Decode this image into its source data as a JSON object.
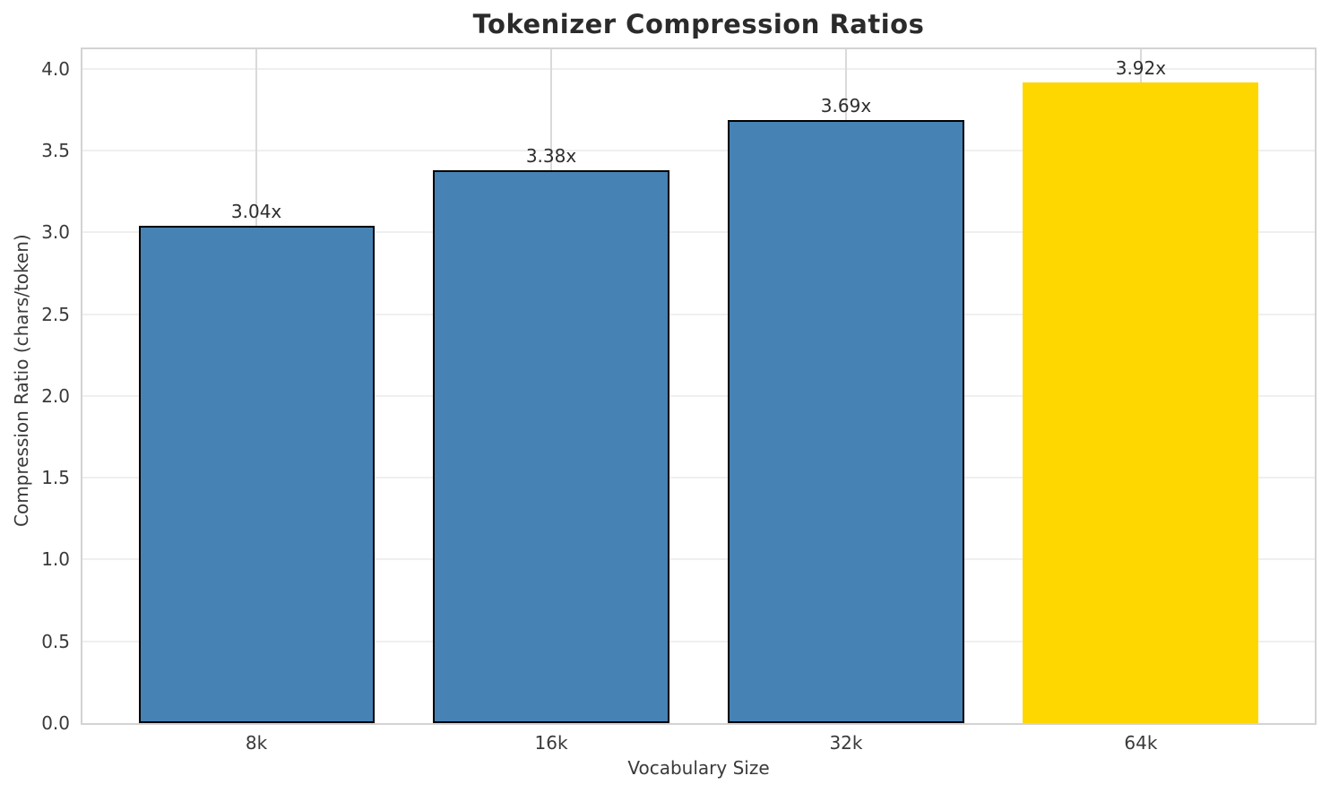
{
  "chart_data": {
    "type": "bar",
    "title": "Tokenizer Compression Ratios",
    "xlabel": "Vocabulary Size",
    "ylabel": "Compression Ratio (chars/token)",
    "categories": [
      "8k",
      "16k",
      "32k",
      "64k"
    ],
    "values": [
      3.04,
      3.38,
      3.69,
      3.92
    ],
    "bar_labels": [
      "3.04x",
      "3.38x",
      "3.69x",
      "3.92x"
    ],
    "bar_colors": [
      "#4682b4",
      "#4682b4",
      "#4682b4",
      "#ffd700"
    ],
    "bar_edge_colors": [
      "#000000",
      "#000000",
      "#000000",
      "none"
    ],
    "highlighted_category": "64k",
    "ylim": [
      0,
      4.12
    ],
    "yticks": [
      0,
      0.5,
      1,
      1.5,
      2,
      2.5,
      3,
      3.5,
      4
    ],
    "ytick_labels": [
      "0.0",
      "0.5",
      "1.0",
      "1.5",
      "2.0",
      "2.5",
      "3.0",
      "3.5",
      "4.0"
    ],
    "grid": "on",
    "legend": "none",
    "colors": {
      "bar_blue": "#4682b4",
      "bar_gold": "#ffd700",
      "grid_horizontal": "#efefef",
      "grid_vertical": "#dadada",
      "spine": "#d3d3d3",
      "text": "#2e2e2e"
    }
  }
}
